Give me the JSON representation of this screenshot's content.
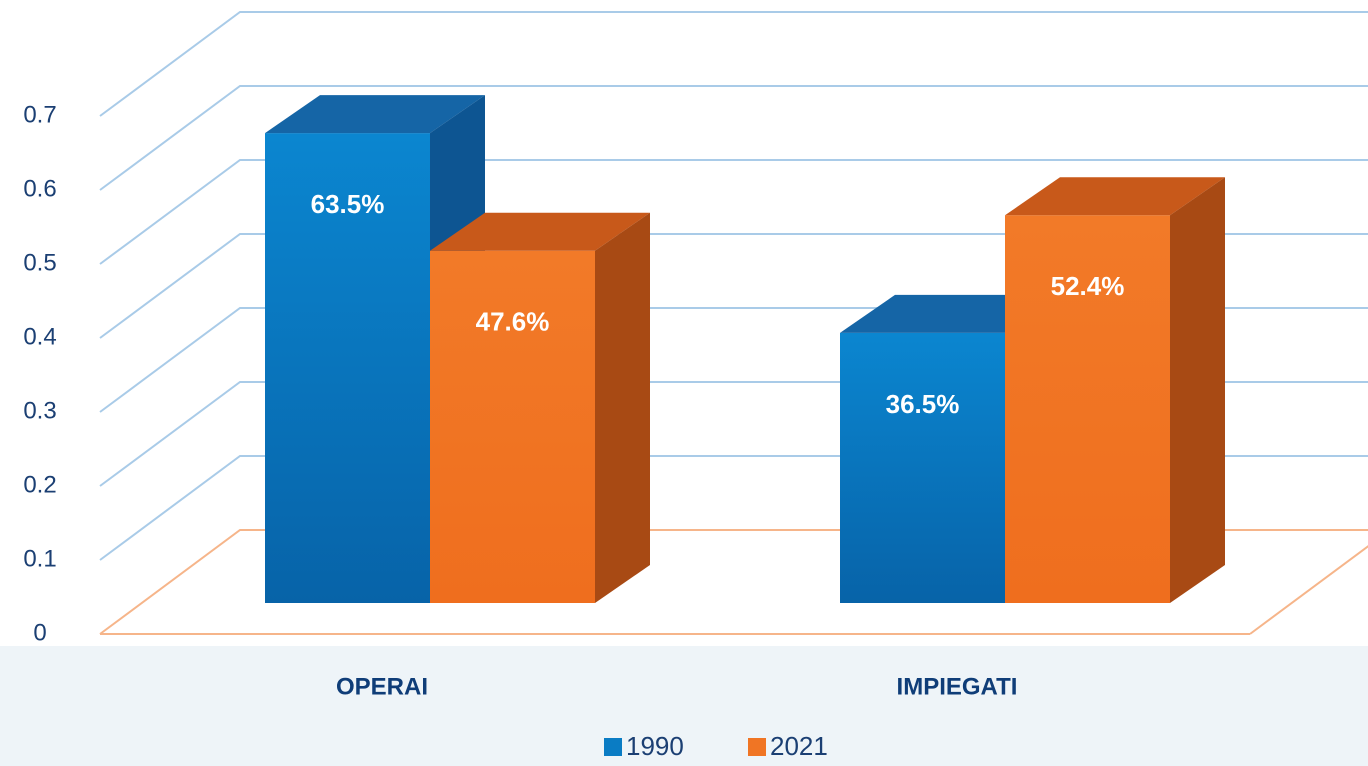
{
  "chart_data": {
    "type": "bar",
    "categories": [
      "OPERAI",
      "IMPIEGATI"
    ],
    "series": [
      {
        "name": "1990",
        "color": "#0a7cc4",
        "values": [
          0.635,
          0.365
        ],
        "value_labels": [
          "63.5%",
          "36.5%"
        ]
      },
      {
        "name": "2021",
        "color": "#f07524",
        "values": [
          0.476,
          0.524
        ],
        "value_labels": [
          "47.6%",
          "52.4%"
        ]
      }
    ],
    "ylim": [
      0,
      0.7
    ],
    "yticks": [
      0,
      0.1,
      0.2,
      0.3,
      0.4,
      0.5,
      0.6,
      0.7
    ],
    "grid": true,
    "legend": "bottom"
  }
}
